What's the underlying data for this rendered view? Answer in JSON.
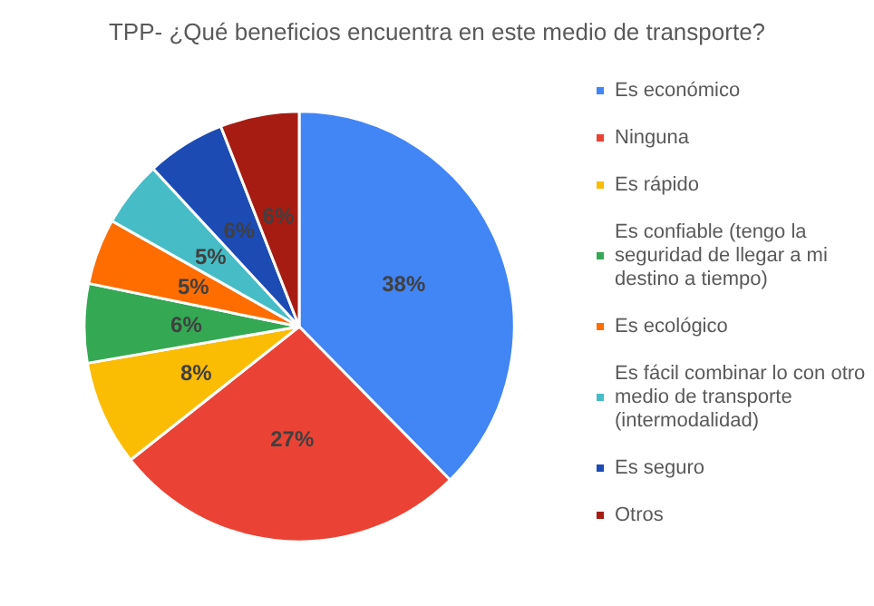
{
  "chart_data": {
    "type": "pie",
    "title": "TPP- ¿Qué beneficios encuentra en este medio de transporte?",
    "categories": [
      "Es económico",
      "Ninguna",
      "Es rápido",
      "Es confiable (tengo la seguridad de llegar a mi destino a tiempo)",
      "Es ecológico",
      "Es fácil combinar lo con otro medio de transporte (intermodalidad)",
      "Es seguro",
      "Otros"
    ],
    "values": [
      38,
      27,
      8,
      6,
      5,
      5,
      6,
      6
    ],
    "colors": [
      "#4285f4",
      "#ea4335",
      "#fbbc04",
      "#34a853",
      "#ff6d01",
      "#46bdc6",
      "#1c4bb4",
      "#a61c12"
    ],
    "value_labels": [
      "38%",
      "27%",
      "8%",
      "6%",
      "5%",
      "5%",
      "6%",
      "6%"
    ],
    "legend": "right"
  }
}
